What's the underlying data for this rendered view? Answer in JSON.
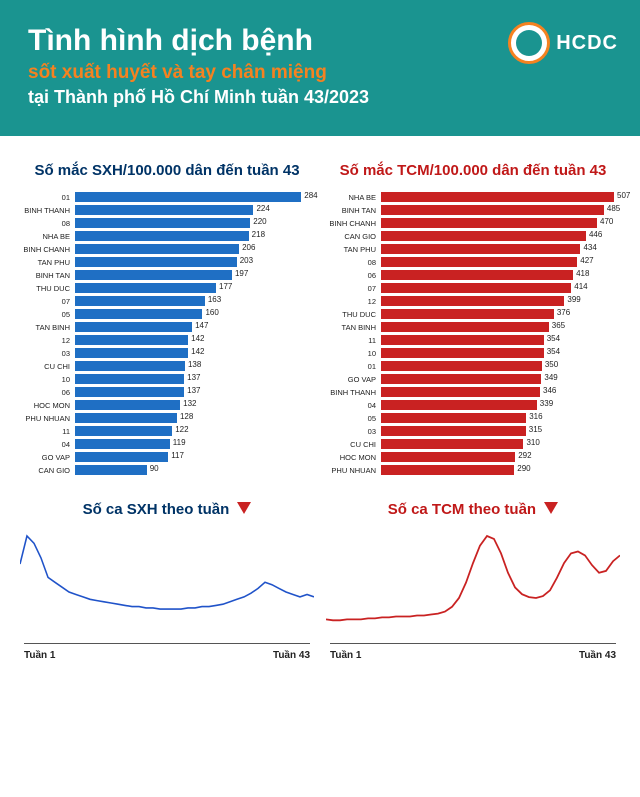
{
  "header": {
    "title": "Tình hình dịch bệnh",
    "subtitle_orange": "sốt xuất huyết và tay chân miệng",
    "subtitle_white": "tại Thành phố Hồ Chí Minh tuần 43/2023",
    "logo_text": "HCDC",
    "background_color": "#1a9490",
    "accent_color": "#f58220"
  },
  "sxh_bar": {
    "title": "Số mắc SXH/100.000 dân đến tuần 43",
    "color": "#1f6fc4",
    "title_color": "#003366",
    "max": 300,
    "rows": [
      {
        "cat": "01",
        "val": 284
      },
      {
        "cat": "BINH THANH",
        "val": 224
      },
      {
        "cat": "08",
        "val": 220
      },
      {
        "cat": "NHA BE",
        "val": 218
      },
      {
        "cat": "BINH CHANH",
        "val": 206
      },
      {
        "cat": "TAN PHU",
        "val": 203
      },
      {
        "cat": "BINH TAN",
        "val": 197
      },
      {
        "cat": "THU DUC",
        "val": 177
      },
      {
        "cat": "07",
        "val": 163
      },
      {
        "cat": "05",
        "val": 160
      },
      {
        "cat": "TAN BINH",
        "val": 147
      },
      {
        "cat": "12",
        "val": 142
      },
      {
        "cat": "03",
        "val": 142
      },
      {
        "cat": "CU CHI",
        "val": 138
      },
      {
        "cat": "10",
        "val": 137
      },
      {
        "cat": "06",
        "val": 137
      },
      {
        "cat": "HOC MON",
        "val": 132
      },
      {
        "cat": "PHU NHUAN",
        "val": 128
      },
      {
        "cat": "11",
        "val": 122
      },
      {
        "cat": "04",
        "val": 119
      },
      {
        "cat": "GO VAP",
        "val": 117
      },
      {
        "cat": "CAN GIO",
        "val": 90
      }
    ]
  },
  "tcm_bar": {
    "title": "Số mắc TCM/100.000 dân đến tuần 43",
    "color": "#c92222",
    "title_color": "#c01818",
    "max": 520,
    "rows": [
      {
        "cat": "NHA BE",
        "val": 507
      },
      {
        "cat": "BINH TAN",
        "val": 485
      },
      {
        "cat": "BINH CHANH",
        "val": 470
      },
      {
        "cat": "CAN GIO",
        "val": 446
      },
      {
        "cat": "TAN PHU",
        "val": 434
      },
      {
        "cat": "08",
        "val": 427
      },
      {
        "cat": "06",
        "val": 418
      },
      {
        "cat": "07",
        "val": 414
      },
      {
        "cat": "12",
        "val": 399
      },
      {
        "cat": "THU DUC",
        "val": 376
      },
      {
        "cat": "TAN BINH",
        "val": 365
      },
      {
        "cat": "11",
        "val": 354
      },
      {
        "cat": "10",
        "val": 354
      },
      {
        "cat": "01",
        "val": 350
      },
      {
        "cat": "GO VAP",
        "val": 349
      },
      {
        "cat": "BINH THANH",
        "val": 346
      },
      {
        "cat": "04",
        "val": 339
      },
      {
        "cat": "05",
        "val": 316
      },
      {
        "cat": "03",
        "val": 315
      },
      {
        "cat": "CU CHI",
        "val": 310
      },
      {
        "cat": "HOC MON",
        "val": 292
      },
      {
        "cat": "PHU NHUAN",
        "val": 290
      }
    ]
  },
  "sxh_line": {
    "title": "Số ca SXH theo tuần",
    "trend": "down",
    "color": "#2053c9",
    "stroke_width": 1.6,
    "x_start": "Tuần 1",
    "x_end": "Tuần 43",
    "points": [
      55,
      78,
      72,
      60,
      44,
      40,
      36,
      32,
      30,
      28,
      26,
      25,
      24,
      23,
      22,
      21,
      20,
      20,
      19,
      19,
      18,
      18,
      18,
      18,
      19,
      19,
      20,
      20,
      21,
      22,
      24,
      26,
      28,
      31,
      35,
      40,
      38,
      35,
      32,
      30,
      28,
      30,
      28
    ]
  },
  "tcm_line": {
    "title": "Số ca TCM theo tuần",
    "trend": "down",
    "color": "#c92222",
    "stroke_width": 1.8,
    "x_start": "Tuần 1",
    "x_end": "Tuần 43",
    "points": [
      12,
      11,
      11,
      12,
      12,
      12,
      13,
      13,
      14,
      14,
      15,
      15,
      15,
      16,
      16,
      17,
      18,
      20,
      25,
      34,
      50,
      70,
      88,
      98,
      95,
      80,
      60,
      45,
      38,
      35,
      34,
      36,
      42,
      55,
      70,
      80,
      82,
      78,
      68,
      60,
      62,
      72,
      78
    ]
  }
}
